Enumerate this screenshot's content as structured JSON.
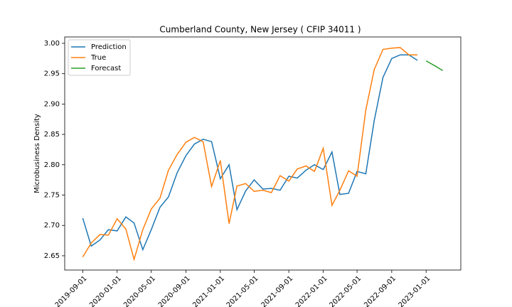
{
  "chart_data": {
    "type": "line",
    "title": "Cumberland County, New Jersey ( CFIP 34011 )",
    "y_label": "Microbusiness Density",
    "x": [
      "2019-09-01",
      "2019-10-01",
      "2019-11-01",
      "2019-12-01",
      "2020-01-01",
      "2020-02-01",
      "2020-03-01",
      "2020-04-01",
      "2020-05-01",
      "2020-06-01",
      "2020-07-01",
      "2020-08-01",
      "2020-09-01",
      "2020-10-01",
      "2020-11-01",
      "2020-12-01",
      "2021-01-01",
      "2021-02-01",
      "2021-03-01",
      "2021-04-01",
      "2021-05-01",
      "2021-06-01",
      "2021-07-01",
      "2021-08-01",
      "2021-09-01",
      "2021-10-01",
      "2021-11-01",
      "2021-12-01",
      "2022-01-01",
      "2022-02-01",
      "2022-03-01",
      "2022-04-01",
      "2022-05-01",
      "2022-06-01",
      "2022-07-01",
      "2022-08-01",
      "2022-09-01",
      "2022-10-01",
      "2022-11-01",
      "2022-12-01",
      "2023-01-01",
      "2023-02-01",
      "2023-03-01"
    ],
    "series": [
      {
        "name": "Prediction",
        "color": "#1f77b4",
        "values": [
          2.712,
          2.666,
          2.676,
          2.693,
          2.691,
          2.714,
          2.704,
          2.66,
          2.693,
          2.73,
          2.747,
          2.787,
          2.815,
          2.834,
          2.842,
          2.838,
          2.777,
          2.8,
          2.726,
          2.757,
          2.775,
          2.76,
          2.761,
          2.758,
          2.781,
          2.778,
          2.791,
          2.8,
          2.792,
          2.821,
          2.751,
          2.753,
          2.789,
          2.785,
          2.873,
          2.944,
          2.975,
          2.981,
          2.981,
          2.972,
          null,
          null,
          null
        ]
      },
      {
        "name": "True",
        "color": "#ff7f0e",
        "values": [
          2.648,
          2.671,
          2.685,
          2.684,
          2.711,
          2.694,
          2.644,
          2.693,
          2.727,
          2.745,
          2.791,
          2.817,
          2.837,
          2.845,
          2.838,
          2.764,
          2.807,
          2.703,
          2.765,
          2.769,
          2.756,
          2.758,
          2.754,
          2.782,
          2.773,
          2.793,
          2.798,
          2.789,
          2.827,
          2.733,
          2.758,
          2.79,
          2.781,
          2.89,
          2.957,
          2.99,
          2.992,
          2.993,
          2.981,
          2.981,
          null,
          null,
          null
        ]
      },
      {
        "name": "Forecast",
        "color": "#2ca02c",
        "values": [
          null,
          null,
          null,
          null,
          null,
          null,
          null,
          null,
          null,
          null,
          null,
          null,
          null,
          null,
          null,
          null,
          null,
          null,
          null,
          null,
          null,
          null,
          null,
          null,
          null,
          null,
          null,
          null,
          null,
          null,
          null,
          null,
          null,
          null,
          null,
          null,
          null,
          null,
          null,
          null,
          2.971,
          2.963,
          2.955
        ]
      }
    ],
    "xlim": [
      "2019-06-29",
      "2023-05-04"
    ],
    "xticks": [
      "2019-09-01",
      "2020-01-01",
      "2020-05-01",
      "2020-09-01",
      "2021-01-01",
      "2021-05-01",
      "2021-09-01",
      "2022-01-01",
      "2022-05-01",
      "2022-09-01",
      "2023-01-01"
    ],
    "ylim": [
      2.6265,
      3.0105
    ],
    "yticks": [
      2.65,
      {
        "value": 2.7,
        "label": "2.70"
      },
      2.75,
      {
        "value": 2.8,
        "label": "2.80"
      },
      2.85,
      {
        "value": 2.9,
        "label": "2.90"
      },
      2.95,
      {
        "value": 3,
        "label": "3.00"
      }
    ],
    "legend": "upper left"
  }
}
